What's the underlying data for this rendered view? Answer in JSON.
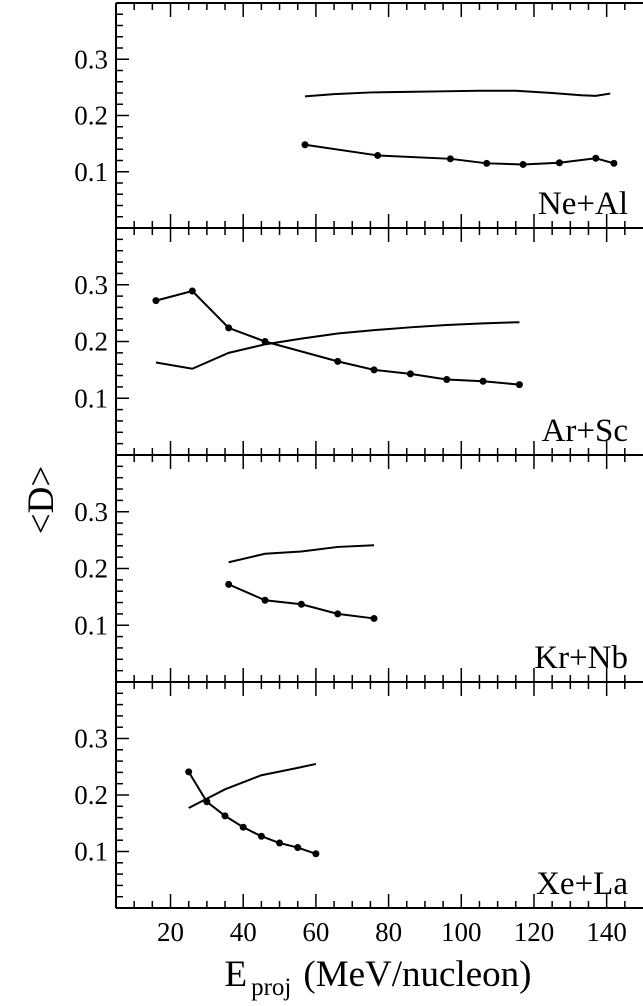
{
  "chart_data": {
    "type": "line",
    "xlabel": "E",
    "xlabel_subscript": "proj",
    "xlabel_units": "(MeV/nucleon)",
    "ylabel": "<D>",
    "xlim": [
      5,
      150
    ],
    "ylim": [
      0,
      0.4
    ],
    "x_ticks": [
      20,
      40,
      60,
      80,
      100,
      120,
      140
    ],
    "y_ticks": [
      0.1,
      0.2,
      0.3
    ],
    "grid": false,
    "panels": [
      {
        "label": "Ne+Al",
        "series": [
          {
            "marker": false,
            "x": [
              57,
              65,
              75,
              85,
              95,
              105,
              115,
              125,
              133,
              137,
              141
            ],
            "y": [
              0.234,
              0.238,
              0.241,
              0.242,
              0.243,
              0.244,
              0.244,
              0.24,
              0.236,
              0.235,
              0.239
            ]
          },
          {
            "marker": true,
            "x": [
              57,
              77,
              97,
              107,
              117,
              127,
              137,
              142
            ],
            "y": [
              0.148,
              0.129,
              0.123,
              0.115,
              0.113,
              0.116,
              0.124,
              0.115
            ]
          }
        ]
      },
      {
        "label": "Ar+Sc",
        "series": [
          {
            "marker": false,
            "x": [
              16,
              26,
              36,
              46,
              56,
              66,
              76,
              86,
              96,
              106,
              116
            ],
            "y": [
              0.163,
              0.152,
              0.18,
              0.195,
              0.205,
              0.214,
              0.22,
              0.225,
              0.229,
              0.232,
              0.234
            ]
          },
          {
            "marker": true,
            "x": [
              16,
              26,
              36,
              46,
              66,
              76,
              86,
              96,
              106,
              116
            ],
            "y": [
              0.272,
              0.289,
              0.224,
              0.2,
              0.165,
              0.15,
              0.143,
              0.133,
              0.13,
              0.124
            ]
          }
        ]
      },
      {
        "label": "Kr+Nb",
        "series": [
          {
            "marker": false,
            "x": [
              36,
              46,
              56,
              66,
              76
            ],
            "y": [
              0.211,
              0.226,
              0.23,
              0.238,
              0.241
            ]
          },
          {
            "marker": true,
            "x": [
              36,
              46,
              56,
              66,
              76
            ],
            "y": [
              0.172,
              0.144,
              0.137,
              0.12,
              0.112
            ]
          }
        ]
      },
      {
        "label": "Xe+La",
        "series": [
          {
            "marker": false,
            "x": [
              25,
              35,
              45,
              55,
              60
            ],
            "y": [
              0.177,
              0.21,
              0.235,
              0.248,
              0.255
            ]
          },
          {
            "marker": true,
            "x": [
              25,
              30,
              35,
              40,
              45,
              50,
              55,
              60
            ],
            "y": [
              0.241,
              0.188,
              0.163,
              0.143,
              0.127,
              0.115,
              0.107,
              0.096
            ]
          }
        ]
      }
    ]
  }
}
